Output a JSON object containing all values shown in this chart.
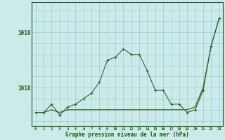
{
  "x": [
    0,
    1,
    2,
    3,
    4,
    5,
    6,
    7,
    8,
    9,
    10,
    11,
    12,
    13,
    14,
    15,
    16,
    17,
    18,
    19,
    20,
    21,
    22,
    23
  ],
  "y_actual": [
    1017.55,
    1017.55,
    1017.7,
    1017.5,
    1017.65,
    1017.7,
    1017.8,
    1017.9,
    1018.1,
    1018.5,
    1018.55,
    1018.7,
    1018.6,
    1018.6,
    1018.3,
    1017.95,
    1017.95,
    1017.7,
    1017.7,
    1017.55,
    1017.6,
    1017.95,
    1018.75,
    1019.25
  ],
  "y_trend": [
    1017.55,
    1017.55,
    1017.6,
    1017.55,
    1017.6,
    1017.6,
    1017.6,
    1017.6,
    1017.6,
    1017.6,
    1017.6,
    1017.6,
    1017.6,
    1017.6,
    1017.6,
    1017.6,
    1017.6,
    1017.6,
    1017.6,
    1017.6,
    1017.65,
    1018.0,
    1018.75,
    1019.25
  ],
  "line_color": "#2a6b2a",
  "bg_color": "#cceaea",
  "grid_color": "#99cccc",
  "text_color": "#1a5c1a",
  "xlabel": "Graphe pression niveau de la mer (hPa)",
  "yticks": [
    1018,
    1019
  ],
  "ylim": [
    1017.3,
    1019.55
  ],
  "xlim": [
    -0.5,
    23.5
  ]
}
